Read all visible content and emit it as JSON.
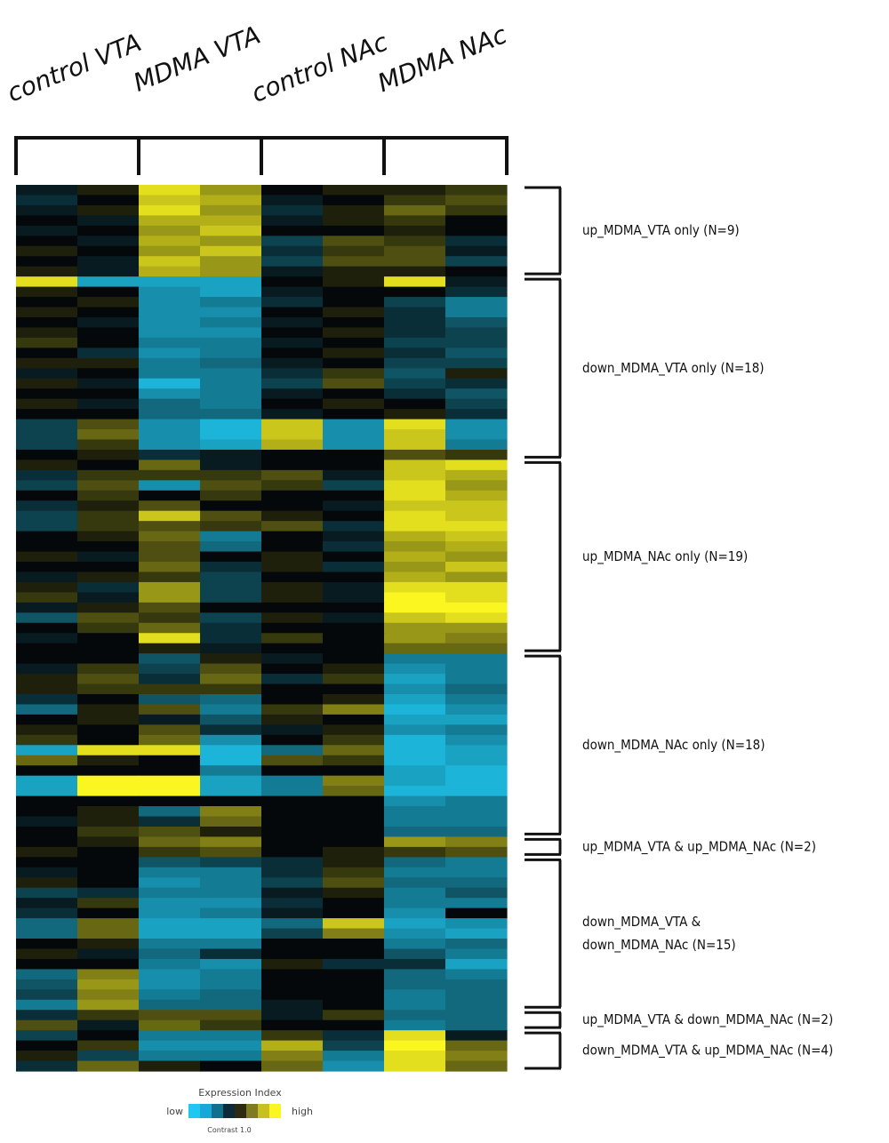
{
  "chart_data": {
    "type": "heatmap",
    "columns": [
      "control VTA",
      "MDMA VTA",
      "control NAc",
      "MDMA NAc"
    ],
    "cells_per_column": 2,
    "zlim": [
      -1,
      1
    ],
    "low_color": "#1ec8f0",
    "mid_color": "#05080a",
    "high_color": "#fcf620",
    "clusters": [
      {
        "label": [
          "up_MDMA_VTA only (N=9)"
        ],
        "values": [
          [
            -0.1,
            0.1,
            0.9,
            0.6,
            0,
            0.1,
            0.1,
            0.2
          ],
          [
            -0.2,
            0,
            0.8,
            0.7,
            -0.1,
            0,
            0.2,
            0.3
          ],
          [
            -0.1,
            0.1,
            0.9,
            0.6,
            -0.2,
            0.1,
            0.4,
            0.2
          ],
          [
            0,
            -0.1,
            0.7,
            0.7,
            -0.1,
            0.1,
            0.2,
            0
          ],
          [
            -0.1,
            0,
            0.6,
            0.8,
            0,
            0,
            0.1,
            0
          ],
          [
            0,
            -0.1,
            0.7,
            0.6,
            -0.3,
            0.3,
            0.2,
            -0.2
          ],
          [
            0.1,
            0,
            0.6,
            0.8,
            -0.2,
            0.2,
            0.3,
            -0.1
          ],
          [
            0,
            -0.1,
            0.8,
            0.6,
            -0.3,
            0.3,
            0.3,
            -0.3
          ],
          [
            0.1,
            -0.1,
            0.7,
            0.6,
            -0.1,
            0.1,
            0.1,
            0
          ]
        ]
      },
      {
        "label": [
          "down_MDMA_VTA only (N=18)"
        ],
        "values": [
          [
            0.9,
            -0.8,
            -0.8,
            -0.8,
            0,
            0.1,
            0.9,
            -0.1
          ],
          [
            0.1,
            0,
            -0.7,
            -0.8,
            -0.1,
            0,
            0,
            -0.2
          ],
          [
            0,
            0.1,
            -0.7,
            -0.6,
            -0.2,
            0,
            -0.3,
            -0.6
          ],
          [
            0.1,
            0,
            -0.7,
            -0.7,
            0,
            0.1,
            -0.2,
            -0.6
          ],
          [
            0,
            -0.1,
            -0.7,
            -0.6,
            -0.1,
            0,
            -0.2,
            -0.4
          ],
          [
            0.1,
            0,
            -0.7,
            -0.7,
            0,
            0.1,
            -0.2,
            -0.3
          ],
          [
            0.2,
            0,
            -0.6,
            -0.6,
            -0.1,
            0,
            -0.3,
            -0.3
          ],
          [
            0,
            -0.2,
            -0.7,
            -0.6,
            0,
            0.1,
            -0.2,
            -0.4
          ],
          [
            0.1,
            0.1,
            -0.6,
            -0.5,
            -0.1,
            0,
            -0.3,
            -0.3
          ],
          [
            -0.1,
            0,
            -0.6,
            -0.6,
            -0.2,
            0.2,
            -0.4,
            0.1
          ],
          [
            0.1,
            -0.1,
            -0.9,
            -0.6,
            -0.3,
            0.3,
            -0.3,
            -0.2
          ],
          [
            0,
            0,
            -0.7,
            -0.6,
            -0.1,
            0,
            -0.2,
            -0.4
          ],
          [
            0.1,
            -0.1,
            -0.5,
            -0.6,
            0,
            0.1,
            0,
            -0.3
          ],
          [
            0,
            0,
            -0.5,
            -0.5,
            -0.1,
            0,
            0.1,
            -0.2
          ],
          [
            -0.3,
            0.3,
            -0.7,
            -0.9,
            0.8,
            -0.7,
            0.9,
            -0.7
          ],
          [
            -0.3,
            0.4,
            -0.7,
            -0.9,
            0.8,
            -0.7,
            0.8,
            -0.7
          ],
          [
            -0.3,
            0.2,
            -0.7,
            -0.8,
            0.7,
            -0.7,
            0.8,
            -0.6
          ],
          [
            0,
            0.1,
            -0.2,
            -0.1,
            0,
            0,
            0.3,
            0.2
          ]
        ]
      },
      {
        "label": [
          "up_MDMA_NAc only (N=19)"
        ],
        "values": [
          [
            0.1,
            0,
            0.4,
            -0.1,
            0,
            0,
            0.8,
            0.9
          ],
          [
            -0.2,
            0.2,
            0.2,
            0.2,
            0.3,
            -0.1,
            0.8,
            0.7
          ],
          [
            -0.3,
            0.3,
            -0.7,
            0.3,
            0.2,
            -0.3,
            0.9,
            0.6
          ],
          [
            0,
            0.2,
            0,
            0.2,
            0,
            0,
            0.9,
            0.7
          ],
          [
            -0.2,
            0.1,
            0.3,
            0,
            0,
            -0.1,
            0.8,
            0.8
          ],
          [
            -0.3,
            0.2,
            0.8,
            0.3,
            0.1,
            0,
            0.9,
            0.8
          ],
          [
            -0.3,
            0.2,
            0.3,
            0.2,
            0.3,
            -0.2,
            0.9,
            0.9
          ],
          [
            0,
            0.1,
            0.4,
            -0.6,
            0,
            -0.1,
            0.7,
            0.8
          ],
          [
            0,
            0,
            0.3,
            -0.5,
            0,
            -0.2,
            0.6,
            0.7
          ],
          [
            0.1,
            -0.1,
            0.3,
            0,
            0.1,
            0,
            0.7,
            0.6
          ],
          [
            0,
            0,
            0.4,
            -0.2,
            0.1,
            -0.2,
            0.6,
            0.8
          ],
          [
            -0.1,
            0.1,
            0.2,
            -0.3,
            0,
            0,
            0.7,
            0.6
          ],
          [
            0.1,
            -0.2,
            0.6,
            -0.3,
            0.1,
            -0.1,
            0.9,
            0.9
          ],
          [
            0.2,
            -0.1,
            0.6,
            -0.3,
            0.1,
            -0.1,
            1,
            0.9
          ],
          [
            -0.1,
            0.1,
            0.3,
            0,
            0,
            0,
            1,
            1
          ],
          [
            -0.4,
            0.3,
            0.2,
            -0.3,
            0.1,
            -0.1,
            0.8,
            0.9
          ],
          [
            0,
            0.2,
            0.4,
            -0.2,
            0,
            0,
            0.6,
            0.6
          ],
          [
            -0.1,
            0,
            0.9,
            -0.2,
            0.2,
            0,
            0.6,
            0.5
          ],
          [
            0,
            0,
            0.1,
            -0.1,
            0,
            0,
            0.4,
            0.4
          ]
        ]
      },
      {
        "label": [
          "down_MDMA_NAc only (N=18)"
        ],
        "values": [
          [
            0,
            0,
            -0.4,
            0.1,
            -0.1,
            0,
            -0.6,
            -0.6
          ],
          [
            -0.1,
            0.2,
            -0.3,
            0.3,
            0,
            0.1,
            -0.7,
            -0.6
          ],
          [
            0.1,
            0.3,
            -0.2,
            0.4,
            -0.2,
            0.2,
            -0.8,
            -0.6
          ],
          [
            0.1,
            0.2,
            0.2,
            0.2,
            0,
            0,
            -0.7,
            -0.5
          ],
          [
            -0.2,
            0,
            -0.4,
            -0.5,
            0,
            0.1,
            -0.8,
            -0.6
          ],
          [
            -0.5,
            0.1,
            0.3,
            -0.6,
            0.2,
            0.5,
            -0.9,
            -0.7
          ],
          [
            0,
            0.1,
            -0.1,
            -0.4,
            0.1,
            0,
            -0.8,
            -0.8
          ],
          [
            0.1,
            0,
            0.3,
            -0.2,
            -0.1,
            0.1,
            -0.7,
            -0.6
          ],
          [
            0.2,
            0,
            0.4,
            -0.7,
            0,
            0.2,
            -0.9,
            -0.7
          ],
          [
            -0.8,
            0.9,
            0.9,
            -0.9,
            -0.5,
            0.4,
            -0.9,
            -0.8
          ],
          [
            0.4,
            0.1,
            0,
            -0.9,
            0.3,
            0.2,
            -0.9,
            -0.8
          ],
          [
            0,
            0,
            0,
            -0.6,
            0,
            0,
            -0.8,
            -0.9
          ],
          [
            -0.8,
            1,
            1,
            -0.8,
            -0.6,
            0.5,
            -0.8,
            -0.9
          ],
          [
            -0.8,
            1,
            1,
            -0.8,
            -0.6,
            0.4,
            -0.9,
            -0.9
          ],
          [
            0,
            0,
            0,
            0,
            0,
            0,
            -0.7,
            -0.6
          ],
          [
            0,
            0.1,
            -0.5,
            0.5,
            0,
            0,
            -0.6,
            -0.6
          ],
          [
            -0.1,
            0.1,
            -0.2,
            0.4,
            0,
            0,
            -0.6,
            -0.6
          ],
          [
            0,
            0.2,
            0.3,
            0.1,
            0,
            0,
            -0.5,
            -0.5
          ]
        ]
      },
      {
        "label": [
          "up_MDMA_VTA & up_MDMA_NAc (N=2)"
        ],
        "values": [
          [
            0,
            0.1,
            0.4,
            0.5,
            0,
            0,
            0.6,
            0.5
          ],
          [
            0.1,
            0,
            0.2,
            0.3,
            0,
            0.1,
            0.2,
            0.3
          ]
        ]
      },
      {
        "label": [
          "down_MDMA_VTA &",
          "down_MDMA_NAc (N=15)"
        ],
        "values": [
          [
            0,
            0,
            -0.4,
            -0.3,
            -0.2,
            0.1,
            -0.5,
            -0.6
          ],
          [
            -0.1,
            0,
            -0.6,
            -0.6,
            -0.2,
            0.2,
            -0.6,
            -0.6
          ],
          [
            0.1,
            0,
            -0.7,
            -0.6,
            -0.3,
            0.3,
            -0.5,
            -0.5
          ],
          [
            -0.3,
            -0.2,
            -0.6,
            -0.6,
            -0.1,
            0.1,
            -0.6,
            -0.4
          ],
          [
            -0.1,
            0.2,
            -0.7,
            -0.7,
            -0.2,
            0,
            -0.6,
            -0.6
          ],
          [
            -0.2,
            0,
            -0.7,
            -0.6,
            -0.1,
            0,
            -0.7,
            0
          ],
          [
            -0.5,
            0.4,
            -0.8,
            -0.8,
            -0.5,
            0.8,
            -0.8,
            -0.7
          ],
          [
            -0.5,
            0.4,
            -0.8,
            -0.8,
            -0.3,
            0.5,
            -0.7,
            -0.8
          ],
          [
            0,
            0.1,
            -0.6,
            -0.6,
            0,
            0,
            -0.6,
            -0.5
          ],
          [
            0.1,
            -0.1,
            -0.5,
            -0.2,
            0,
            0,
            -0.4,
            -0.6
          ],
          [
            0,
            0,
            -0.6,
            -0.7,
            0.1,
            -0.2,
            -0.2,
            -0.8
          ],
          [
            -0.5,
            0.5,
            -0.7,
            -0.6,
            0,
            0,
            -0.5,
            -0.6
          ],
          [
            -0.4,
            0.6,
            -0.7,
            -0.6,
            0,
            0,
            -0.5,
            -0.5
          ],
          [
            -0.3,
            0.5,
            -0.6,
            -0.5,
            0,
            0,
            -0.6,
            -0.5
          ],
          [
            -0.6,
            0.6,
            -0.5,
            -0.5,
            -0.1,
            0,
            -0.6,
            -0.5
          ]
        ]
      },
      {
        "label": [
          "up_MDMA_VTA & down_MDMA_NAc (N=2)"
        ],
        "values": [
          [
            -0.2,
            0.2,
            0.3,
            0.3,
            -0.1,
            0.2,
            -0.5,
            -0.5
          ],
          [
            0.3,
            -0.1,
            0.4,
            0.2,
            0,
            0,
            -0.6,
            -0.5
          ]
        ]
      },
      {
        "label": [
          "down_MDMA_VTA & up_MDMA_NAc (N=4)"
        ],
        "values": [
          [
            -0.3,
            0,
            -0.6,
            -0.6,
            0.2,
            -0.2,
            0.9,
            -0.1
          ],
          [
            0,
            0.2,
            -0.7,
            -0.7,
            0.7,
            -0.3,
            1,
            0.4
          ],
          [
            0.1,
            -0.3,
            -0.6,
            -0.6,
            0.5,
            -0.6,
            0.9,
            0.5
          ],
          [
            -0.2,
            0.4,
            0.1,
            0,
            0.4,
            -0.7,
            0.9,
            0.4
          ]
        ]
      }
    ],
    "colorbar": {
      "title": "Expression Index",
      "low": "low",
      "high": "high",
      "note": "Contrast 1.0",
      "colors": [
        "#1ec8f0",
        "#18a8d8",
        "#12708f",
        "#0c2a38",
        "#2c2a12",
        "#807a22",
        "#c8c020",
        "#fcf620"
      ]
    }
  }
}
